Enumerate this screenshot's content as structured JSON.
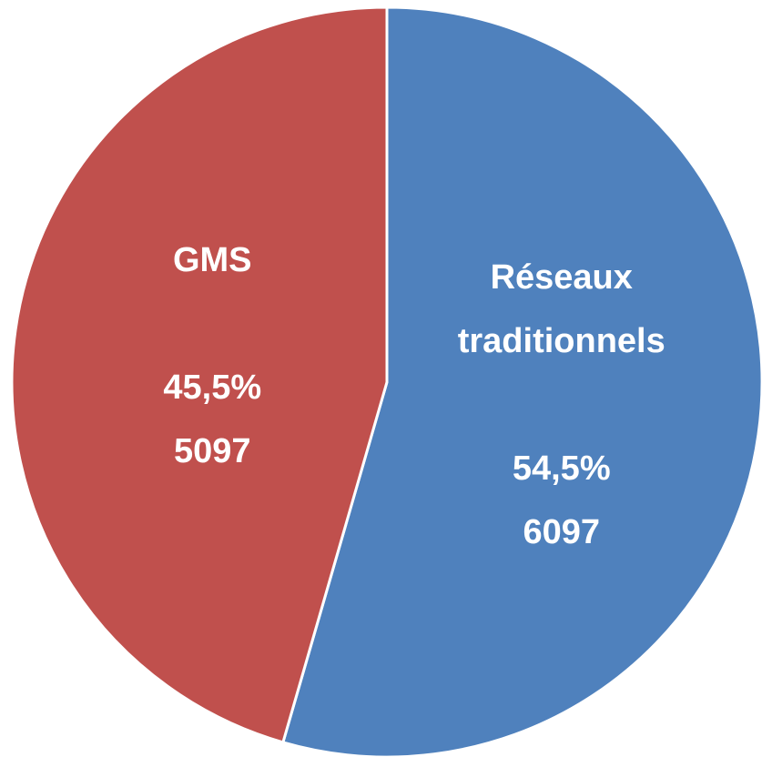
{
  "chart_data": {
    "type": "pie",
    "categories": [
      "Réseaux traditionnels",
      "GMS"
    ],
    "values": [
      6097,
      5097
    ],
    "percents": [
      54.5,
      45.5
    ],
    "percent_labels": [
      "54,5%",
      "45,5%"
    ],
    "colors": [
      "#4f81bd",
      "#c0504d"
    ]
  }
}
